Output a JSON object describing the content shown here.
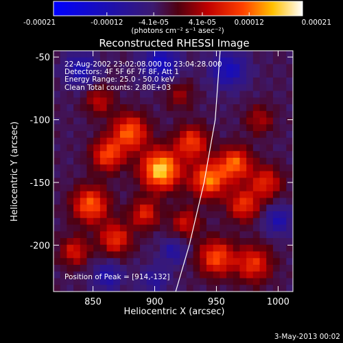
{
  "chart_data": {
    "type": "heatmap",
    "title": "Reconstructed RHESSI Image",
    "xlabel": "Heliocentric X (arcsec)",
    "ylabel": "Heliocentric Y (arcsec)",
    "xlim": [
      818,
      1012
    ],
    "ylim": [
      -237,
      -45
    ],
    "x_ticks": [
      {
        "value": 850,
        "label": "850"
      },
      {
        "value": 900,
        "label": "900"
      },
      {
        "value": 950,
        "label": "950"
      },
      {
        "value": 1000,
        "label": "1000"
      }
    ],
    "y_ticks": [
      {
        "value": -50,
        "label": "-50"
      },
      {
        "value": -100,
        "label": "-100"
      },
      {
        "value": -150,
        "label": "-150"
      },
      {
        "value": -200,
        "label": "-200"
      }
    ],
    "colorbar": {
      "label": "(photons cm⁻² s⁻¹ asec⁻²)",
      "range": [
        -0.00021,
        0.00021
      ],
      "ticks": [
        {
          "value": -0.00021,
          "label": "-0.00021"
        },
        {
          "value": -0.00012,
          "label": "-0.00012"
        },
        {
          "value": -4.1e-05,
          "label": "-4.1e-05"
        },
        {
          "value": 4.1e-05,
          "label": "4.1e-05"
        },
        {
          "value": 0.00012,
          "label": "0.00012"
        },
        {
          "value": 0.00021,
          "label": "0.00021"
        }
      ]
    },
    "annotations": [
      "22-Aug-2002 23:02:08.000 to 23:04:28.000",
      "Detectors: 4F 5F 6F 7F 8F, Att 1",
      "Energy Range: 25.0 - 50.0 keV",
      "Clean    Total counts: 2.80E+03"
    ],
    "peak_label": "Position of Peak = [914,-132]",
    "peak": [
      914,
      -132
    ],
    "limb_curve": [
      [
        917,
        -237
      ],
      [
        928,
        -200
      ],
      [
        940,
        -150
      ],
      [
        949,
        -100
      ],
      [
        953,
        -45
      ]
    ],
    "sources": [
      {
        "x": 905,
        "y": -140,
        "amp": 0.00021,
        "s": 11
      },
      {
        "x": 880,
        "y": -110,
        "amp": 0.00015,
        "s": 10
      },
      {
        "x": 862,
        "y": -128,
        "amp": 0.000135,
        "s": 9
      },
      {
        "x": 848,
        "y": -168,
        "amp": 0.00015,
        "s": 10
      },
      {
        "x": 868,
        "y": -195,
        "amp": 0.00012,
        "s": 9
      },
      {
        "x": 835,
        "y": -205,
        "amp": 0.0001,
        "s": 8
      },
      {
        "x": 892,
        "y": -175,
        "amp": 0.00011,
        "s": 8
      },
      {
        "x": 925,
        "y": -182,
        "amp": 9e-05,
        "s": 8
      },
      {
        "x": 930,
        "y": -118,
        "amp": 0.00013,
        "s": 9
      },
      {
        "x": 944,
        "y": -148,
        "amp": 0.000165,
        "s": 10
      },
      {
        "x": 965,
        "y": -135,
        "amp": 0.00015,
        "s": 9
      },
      {
        "x": 972,
        "y": -168,
        "amp": 0.00012,
        "s": 9
      },
      {
        "x": 990,
        "y": -150,
        "amp": 0.00011,
        "s": 9
      },
      {
        "x": 950,
        "y": -210,
        "amp": 0.00014,
        "s": 10
      },
      {
        "x": 980,
        "y": -215,
        "amp": 0.00012,
        "s": 10
      },
      {
        "x": 855,
        "y": -85,
        "amp": 8e-05,
        "s": 8
      },
      {
        "x": 920,
        "y": -80,
        "amp": 6e-05,
        "s": 8
      },
      {
        "x": 985,
        "y": -100,
        "amp": 7e-05,
        "s": 8
      },
      {
        "x": 840,
        "y": -60,
        "amp": -9e-05,
        "s": 9
      },
      {
        "x": 905,
        "y": -55,
        "amp": -0.00011,
        "s": 10
      },
      {
        "x": 960,
        "y": -60,
        "amp": -0.0001,
        "s": 10
      },
      {
        "x": 1000,
        "y": -180,
        "amp": -8e-05,
        "s": 8
      },
      {
        "x": 900,
        "y": -228,
        "amp": -6e-05,
        "s": 8
      },
      {
        "x": 862,
        "y": -225,
        "amp": -8e-05,
        "s": 8
      },
      {
        "x": 915,
        "y": -205,
        "amp": -7e-05,
        "s": 7
      }
    ]
  },
  "footer": {
    "timestamp": "3-May-2013 00:02"
  }
}
